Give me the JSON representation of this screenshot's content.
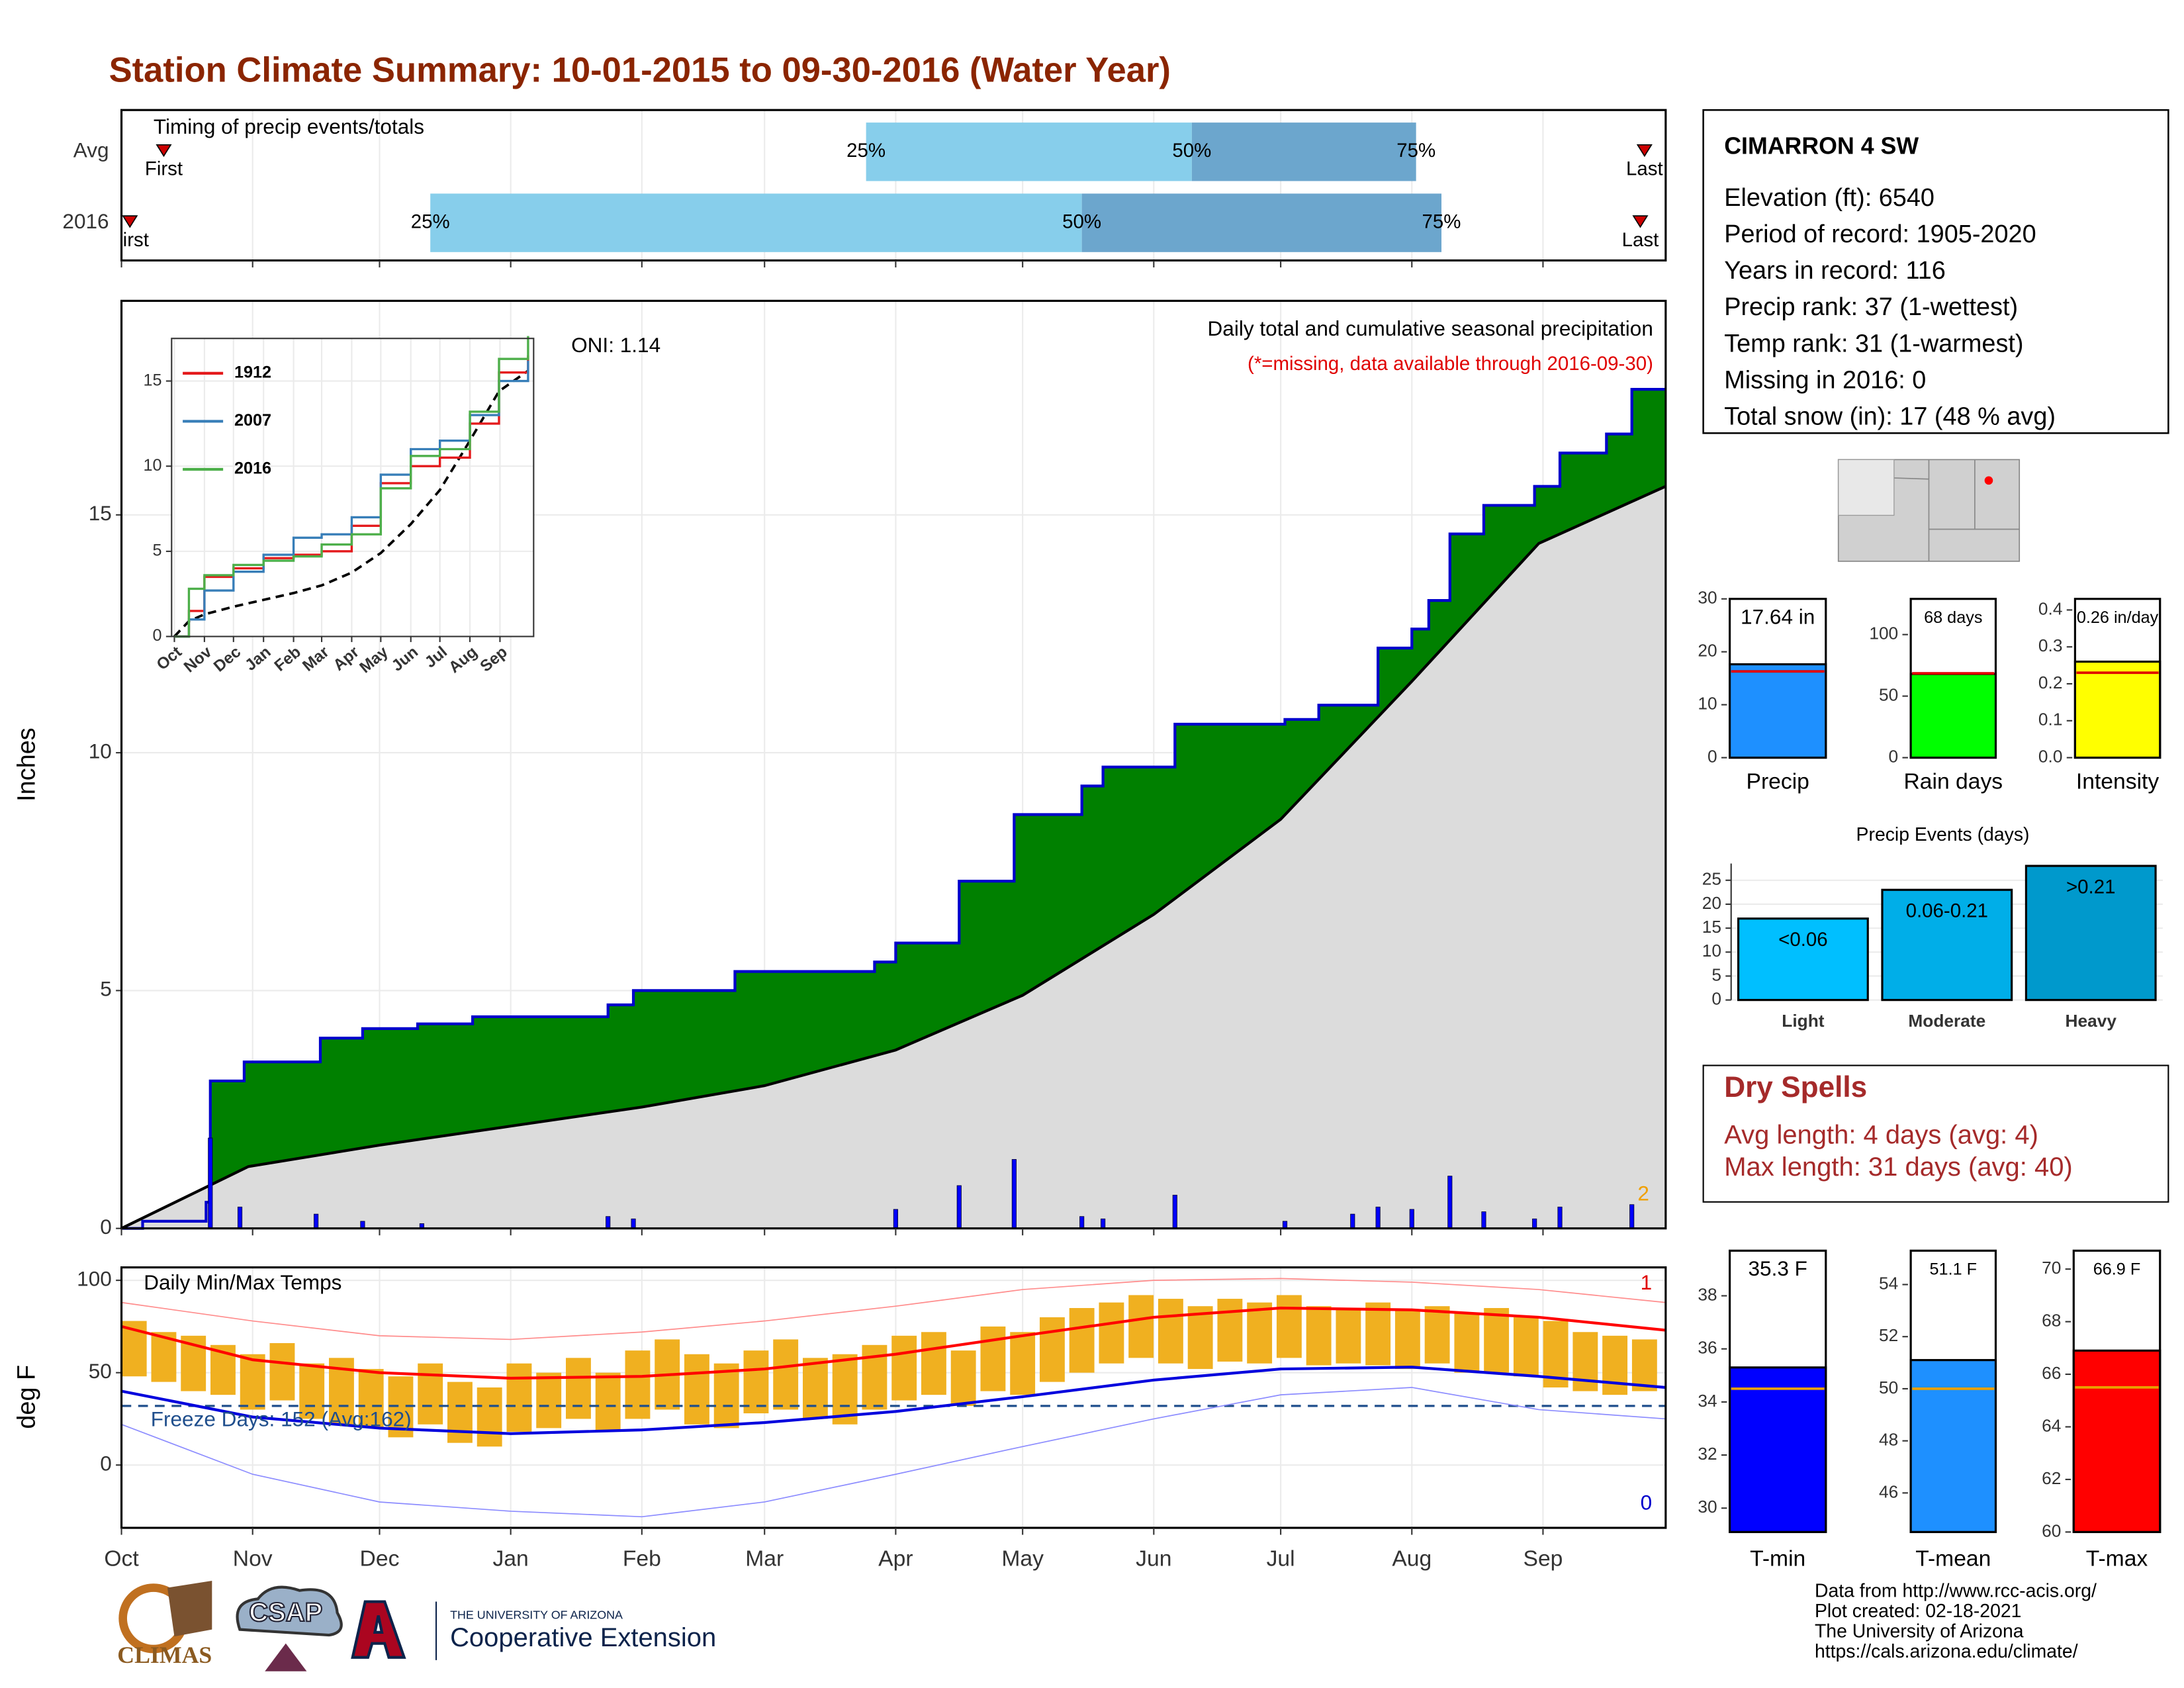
{
  "title": "Station Climate Summary: 10-01-2015 to 09-30-2016 (Water Year)",
  "station": {
    "name": "CIMARRON 4 SW",
    "lines": [
      "Elevation (ft): 6540",
      "Period of record: 1905-2020",
      "Years in record: 116",
      "Precip rank: 37 (1-wettest)",
      "Temp rank: 31 (1-warmest)",
      "Missing in 2016: 0",
      "Total snow (in): 17 (48 % avg)"
    ]
  },
  "dry_spells": {
    "title": "Dry Spells",
    "lines": [
      "Avg length: 4 days (avg: 4)",
      "Max length: 31 days (avg: 40)"
    ]
  },
  "footer": {
    "logos": [
      "CLIMAS",
      "CSAP",
      "THE UNIVERSITY OF ARIZONA",
      "Cooperative Extension"
    ],
    "credits": [
      "Data from http://www.rcc-acis.org/",
      "Plot created: 02-18-2021",
      "The University of Arizona",
      "https://cals.arizona.edu/climate/"
    ]
  },
  "chart_data": [
    {
      "type": "timeline",
      "title": "Timing of precip events/totals",
      "categories": [
        "Avg",
        "2016"
      ],
      "series": [
        {
          "name": "First",
          "values": [
            10,
            2
          ]
        },
        {
          "name": "25%",
          "values": [
            176,
            73
          ]
        },
        {
          "name": "50%",
          "values": [
            253,
            227
          ]
        },
        {
          "name": "75%",
          "values": [
            306,
            312
          ]
        },
        {
          "name": "Last",
          "values": [
            360,
            359
          ]
        }
      ],
      "colors": [
        "#87ceeb",
        "#6ca6cd"
      ],
      "marker_color": "#cc0000",
      "xlim": [
        0,
        365
      ]
    },
    {
      "type": "area",
      "ylabel": "Inches",
      "oni": "ONI: 1.14",
      "subtitle": "Daily total and cumulative seasonal precipitation",
      "note": "(*=missing, data available through 2016-09-30)",
      "missing_count": 2,
      "xlim": [
        0,
        365
      ],
      "ylim": [
        0,
        19.5
      ],
      "yticks": [
        0,
        5,
        10,
        15
      ],
      "grid": true,
      "cumulative": {
        "color": "#0000cc",
        "fill": "#008000",
        "x": [
          0,
          5,
          20,
          21,
          29,
          47,
          57,
          70,
          83,
          115,
          121,
          145,
          178,
          183,
          198,
          211,
          227,
          232,
          249,
          275,
          283,
          297,
          305,
          309,
          314,
          322,
          334,
          340,
          351,
          357,
          365
        ],
        "values": [
          0,
          0.15,
          0.55,
          3.1,
          3.5,
          4.0,
          4.2,
          4.3,
          4.45,
          4.7,
          5.0,
          5.4,
          5.6,
          6.0,
          7.3,
          8.7,
          9.3,
          9.7,
          10.6,
          10.7,
          11.0,
          12.2,
          12.6,
          13.2,
          14.6,
          15.2,
          15.6,
          16.3,
          16.7,
          17.64,
          17.64
        ]
      },
      "average": {
        "color": "#000000",
        "fill": "#dcdcdc",
        "x": [
          0,
          30,
          61,
          92,
          123,
          152,
          183,
          213,
          244,
          274,
          305,
          335,
          365
        ],
        "values": [
          0,
          1.3,
          1.75,
          2.15,
          2.55,
          3.0,
          3.75,
          4.9,
          6.6,
          8.6,
          11.5,
          14.4,
          15.6
        ]
      },
      "daily": {
        "color": "#0000ff",
        "x": [
          21,
          28,
          46,
          57,
          71,
          115,
          121,
          183,
          198,
          211,
          227,
          232,
          249,
          275,
          291,
          297,
          305,
          314,
          322,
          334,
          340,
          357
        ],
        "values": [
          1.9,
          0.45,
          0.3,
          0.15,
          0.1,
          0.25,
          0.2,
          0.4,
          0.9,
          1.45,
          0.25,
          0.2,
          0.7,
          0.15,
          0.3,
          0.45,
          0.4,
          1.1,
          0.35,
          0.2,
          0.45,
          0.5
        ]
      }
    },
    {
      "type": "line",
      "xlim": [
        0,
        365
      ],
      "ylim": [
        0,
        17.5
      ],
      "yticks": [
        0,
        5,
        10,
        15
      ],
      "xticks": [
        {
          "value": 0,
          "label": "Oct"
        },
        {
          "value": 31,
          "label": "Nov"
        },
        {
          "value": 61,
          "label": "Dec"
        },
        {
          "value": 92,
          "label": "Jan"
        },
        {
          "value": 123,
          "label": "Feb"
        },
        {
          "value": 152,
          "label": "Mar"
        },
        {
          "value": 183,
          "label": "Apr"
        },
        {
          "value": 213,
          "label": "May"
        },
        {
          "value": 244,
          "label": "Jun"
        },
        {
          "value": 274,
          "label": "Jul"
        },
        {
          "value": 305,
          "label": "Aug"
        },
        {
          "value": 336,
          "label": "Sep"
        }
      ],
      "x": [
        0,
        15,
        31,
        61,
        92,
        123,
        152,
        183,
        213,
        244,
        274,
        305,
        335,
        365
      ],
      "series": [
        {
          "name": "1912",
          "color": "#e41a1c",
          "values": [
            0,
            1.5,
            3.5,
            4.0,
            4.6,
            4.8,
            5.0,
            6.5,
            9.0,
            10.0,
            10.5,
            12.5,
            15.5,
            16.5
          ]
        },
        {
          "name": "2007",
          "color": "#377eb8",
          "values": [
            0,
            1.0,
            2.7,
            3.8,
            4.8,
            5.8,
            6.0,
            7.0,
            9.5,
            11.0,
            11.5,
            13.0,
            15.0,
            16.2
          ]
        },
        {
          "name": "2016",
          "color": "#4daf4a",
          "values": [
            0,
            2.8,
            3.6,
            4.2,
            4.45,
            4.7,
            5.4,
            6.0,
            8.7,
            10.6,
            11.0,
            13.2,
            16.3,
            17.64
          ]
        }
      ],
      "average": {
        "color": "#000000",
        "values": [
          0,
          0.9,
          1.3,
          1.75,
          2.15,
          2.55,
          3.0,
          3.75,
          4.9,
          6.6,
          8.6,
          11.5,
          14.4,
          15.6
        ]
      }
    },
    {
      "type": "range",
      "title": "Daily Min/Max Temps",
      "ylabel": "deg F",
      "freeze_label": "Freeze Days: 152 (Avg:162)",
      "freeze_line": 32,
      "record_high_count": 1,
      "record_low_count": 0,
      "xlim": [
        0,
        365
      ],
      "ylim": [
        -34,
        107
      ],
      "yticks": [
        0,
        50,
        100
      ],
      "grid": true,
      "xticks": [
        {
          "value": 0,
          "label": "Oct"
        },
        {
          "value": 31,
          "label": "Nov"
        },
        {
          "value": 61,
          "label": "Dec"
        },
        {
          "value": 92,
          "label": "Jan"
        },
        {
          "value": 123,
          "label": "Feb"
        },
        {
          "value": 152,
          "label": "Mar"
        },
        {
          "value": 183,
          "label": "Apr"
        },
        {
          "value": 213,
          "label": "May"
        },
        {
          "value": 244,
          "label": "Jun"
        },
        {
          "value": 274,
          "label": "Jul"
        },
        {
          "value": 305,
          "label": "Aug"
        },
        {
          "value": 336,
          "label": "Sep"
        }
      ],
      "x": [
        0,
        31,
        61,
        92,
        123,
        152,
        183,
        213,
        244,
        274,
        305,
        335,
        365
      ],
      "lines": [
        {
          "color": "#ff0000",
          "width": 2,
          "values": [
            75,
            57,
            50,
            47,
            48,
            52,
            60,
            70,
            80,
            85,
            84,
            80,
            73
          ]
        },
        {
          "color": "#0000dd",
          "width": 2,
          "values": [
            40,
            26,
            20,
            17,
            19,
            23,
            29,
            37,
            46,
            52,
            53,
            48,
            42
          ]
        },
        {
          "color": "#ff8c8c",
          "width": 0.8,
          "values": [
            88,
            78,
            70,
            68,
            72,
            78,
            86,
            95,
            100,
            101,
            99,
            95,
            88
          ]
        },
        {
          "color": "#8c8cff",
          "width": 0.8,
          "values": [
            22,
            -5,
            -20,
            -25,
            -28,
            -20,
            -5,
            10,
            25,
            38,
            42,
            30,
            25
          ]
        }
      ],
      "daily": {
        "color": "#f0b020",
        "x": [
          3,
          10,
          17,
          24,
          31,
          38,
          45,
          52,
          59,
          66,
          73,
          80,
          87,
          94,
          101,
          108,
          115,
          122,
          129,
          136,
          143,
          150,
          157,
          164,
          171,
          178,
          185,
          192,
          199,
          206,
          213,
          220,
          227,
          234,
          241,
          248,
          255,
          262,
          269,
          276,
          283,
          290,
          297,
          304,
          311,
          318,
          325,
          332,
          339,
          346,
          353,
          360
        ],
        "low": [
          48,
          45,
          40,
          38,
          30,
          35,
          25,
          22,
          20,
          15,
          22,
          12,
          10,
          18,
          20,
          25,
          18,
          25,
          30,
          22,
          20,
          28,
          30,
          25,
          22,
          30,
          35,
          38,
          32,
          40,
          38,
          45,
          50,
          55,
          58,
          55,
          52,
          56,
          55,
          58,
          54,
          55,
          54,
          52,
          55,
          50,
          50,
          48,
          42,
          40,
          38,
          40
        ],
        "high": [
          78,
          72,
          70,
          65,
          60,
          66,
          55,
          58,
          52,
          48,
          55,
          45,
          42,
          55,
          50,
          58,
          50,
          62,
          68,
          60,
          55,
          62,
          68,
          58,
          60,
          65,
          70,
          72,
          62,
          75,
          72,
          80,
          85,
          88,
          92,
          90,
          86,
          90,
          88,
          92,
          86,
          85,
          88,
          84,
          86,
          82,
          85,
          80,
          78,
          72,
          70,
          68
        ]
      }
    },
    {
      "type": "bar",
      "categories": [
        "Precip"
      ],
      "values": [
        17.64
      ],
      "value_labels": [
        "17.64 in"
      ],
      "avg": 16.3,
      "avg_color": "#e00000",
      "color": "#1e90ff",
      "ylim": [
        0,
        30
      ],
      "yticks": [
        0,
        10,
        20,
        30
      ]
    },
    {
      "type": "bar",
      "categories": [
        "Rain days"
      ],
      "values": [
        68
      ],
      "value_labels": [
        "68 days"
      ],
      "avg": 68.5,
      "avg_color": "#e00000",
      "color": "#00ff00",
      "ylim": [
        0,
        129
      ],
      "yticks": [
        0,
        50,
        100
      ]
    },
    {
      "type": "bar",
      "categories": [
        "Intensity"
      ],
      "values": [
        0.26
      ],
      "value_labels": [
        "0.26 in/day"
      ],
      "avg": 0.23,
      "avg_color": "#e00000",
      "color": "#ffff00",
      "ylim": [
        0,
        0.43
      ],
      "yticks": [
        {
          "value": 0,
          "label": "0.0"
        },
        0.1,
        0.2,
        0.3,
        0.4
      ]
    },
    {
      "type": "bar",
      "title": "Precip Events (days)",
      "categories": [
        "Light",
        "Moderate",
        "Heavy"
      ],
      "values": [
        17,
        23,
        28
      ],
      "bar_labels": [
        "<0.06",
        "0.06-0.21",
        ">0.21"
      ],
      "colors": [
        "#00bfff",
        "#00aee8",
        "#0099cc"
      ],
      "ylim": [
        0,
        28.5
      ],
      "yticks": [
        0,
        5,
        10,
        15,
        20,
        25
      ],
      "grid": true
    },
    {
      "type": "bar",
      "categories": [
        "T-min"
      ],
      "values": [
        35.3
      ],
      "value_labels": [
        "35.3 F"
      ],
      "avg": 34.5,
      "avg_color": "#e8a000",
      "color": "#0000ff",
      "ylim": [
        29.1,
        39.7
      ],
      "yticks": [
        30,
        32,
        34,
        36,
        38
      ]
    },
    {
      "type": "bar",
      "categories": [
        "T-mean"
      ],
      "values": [
        51.1
      ],
      "value_labels": [
        "51.1 F"
      ],
      "avg": 50.0,
      "avg_color": "#e8a000",
      "color": "#1e90ff",
      "ylim": [
        44.5,
        55.3
      ],
      "yticks": [
        46,
        48,
        50,
        52,
        54
      ]
    },
    {
      "type": "bar",
      "categories": [
        "T-max"
      ],
      "values": [
        66.9
      ],
      "value_labels": [
        "66.9 F"
      ],
      "avg": 65.5,
      "avg_color": "#e8a000",
      "color": "#ff0000",
      "ylim": [
        60,
        70.7
      ],
      "yticks": [
        60,
        62,
        64,
        66,
        68,
        70
      ]
    }
  ]
}
